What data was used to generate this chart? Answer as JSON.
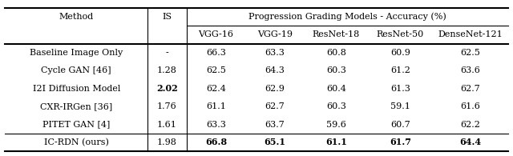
{
  "title": "Progression Grading Models - Accuracy (%)",
  "col_headers": [
    "Method",
    "IS",
    "VGG-16",
    "VGG-19",
    "ResNet-18",
    "ResNet-50",
    "DenseNet-121"
  ],
  "rows": [
    [
      "Baseline Image Only",
      "-",
      "66.3",
      "63.3",
      "60.8",
      "60.9",
      "62.5"
    ],
    [
      "Cycle GAN [46]",
      "1.28",
      "62.5",
      "64.3",
      "60.3",
      "61.2",
      "63.6"
    ],
    [
      "I2I Diffusion Model",
      "2.02",
      "62.4",
      "62.9",
      "60.4",
      "61.3",
      "62.7"
    ],
    [
      "CXR-IRGen [36]",
      "1.76",
      "61.1",
      "62.7",
      "60.3",
      "59.1",
      "61.6"
    ],
    [
      "PITET GAN [4]",
      "1.61",
      "63.3",
      "63.7",
      "59.6",
      "60.7",
      "62.2"
    ],
    [
      "IC-RDN (ours)",
      "1.98",
      "66.8",
      "65.1",
      "61.1",
      "61.7",
      "64.4"
    ]
  ],
  "bold_is_row": 2,
  "bold_data_row": 5,
  "figsize": [
    6.4,
    1.95
  ],
  "dpi": 100,
  "font_size": 8.0
}
